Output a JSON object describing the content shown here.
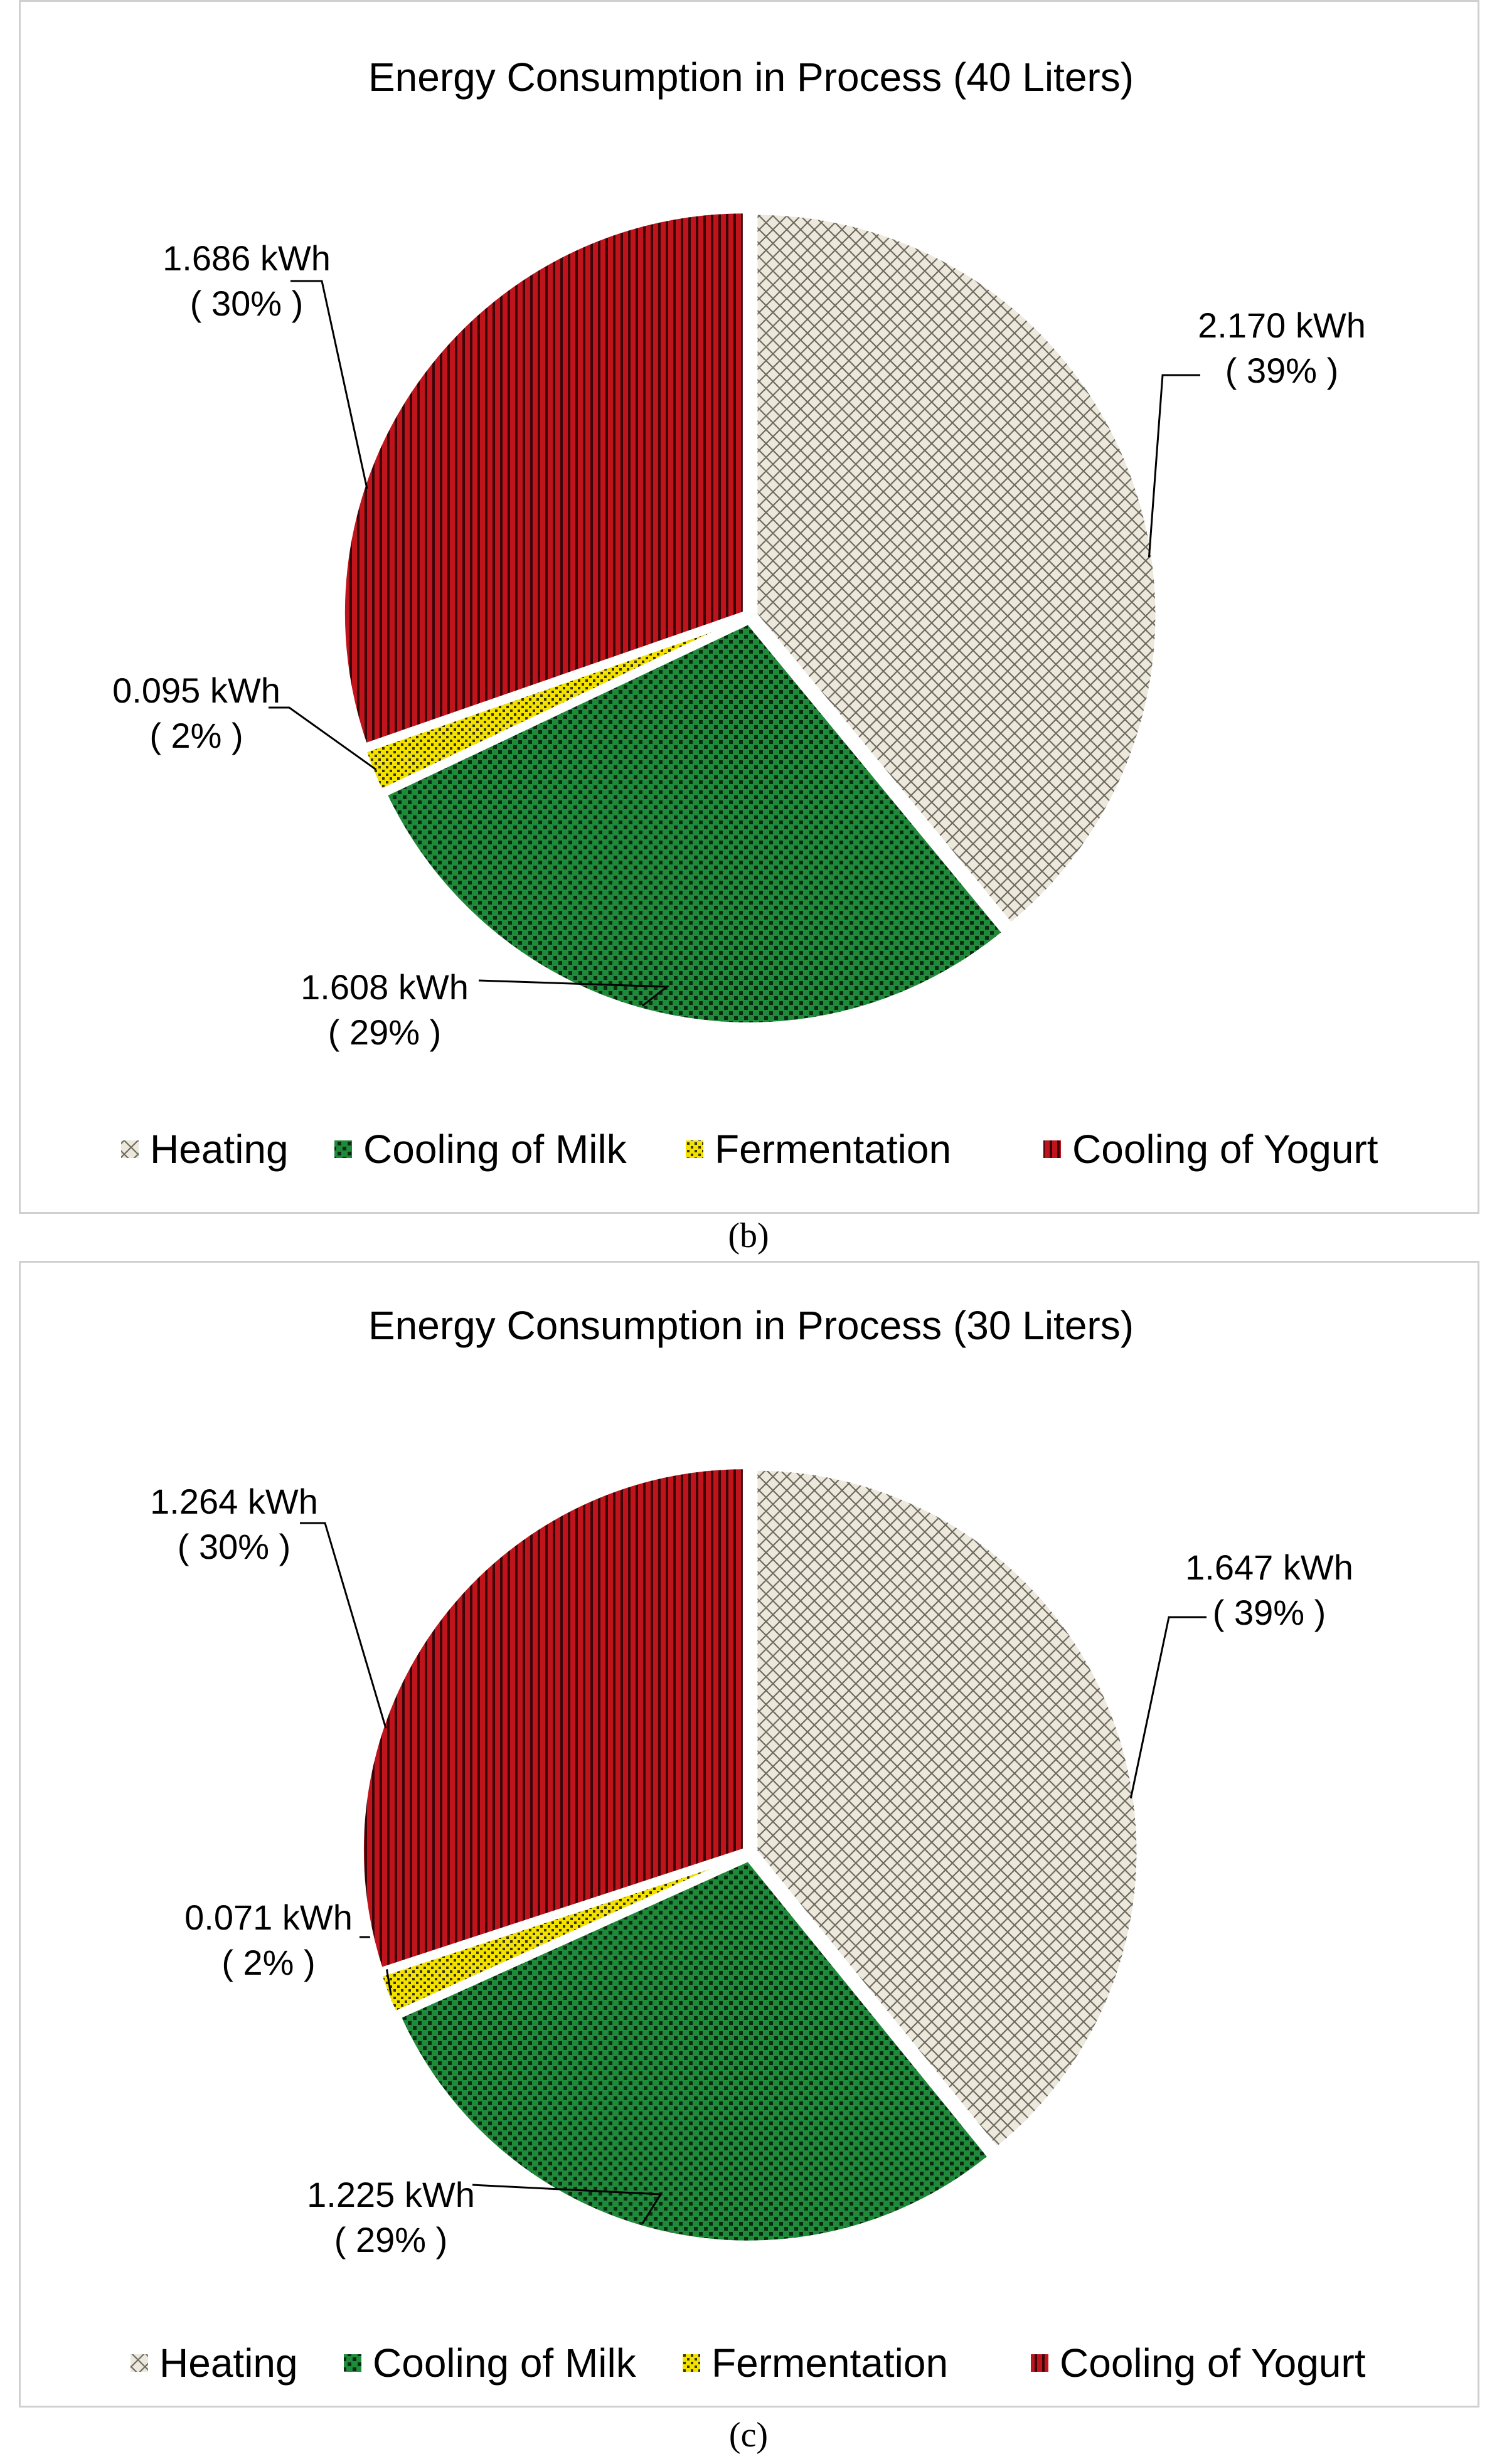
{
  "chart_data": [
    {
      "type": "pie",
      "title": "Energy Consumption in Process (40 Liters)",
      "caption": "(b)",
      "categories": [
        "Heating",
        "Cooling of Milk",
        "Fermentation",
        "Cooling of Yogurt"
      ],
      "values": [
        2.17,
        1.608,
        0.095,
        1.686
      ],
      "value_labels": [
        "2.170 kWh",
        "1.608 kWh",
        "0.095 kWh",
        "1.686 kWh"
      ],
      "percent_labels": [
        "( 39% )",
        "( 29% )",
        "( 2% )",
        "( 30% )"
      ],
      "unit": "kWh",
      "legend_position": "bottom"
    },
    {
      "type": "pie",
      "title": "Energy Consumption in Process (30 Liters)",
      "caption": "(c)",
      "categories": [
        "Heating",
        "Cooling of Milk",
        "Fermentation",
        "Cooling of Yogurt"
      ],
      "values": [
        1.647,
        1.225,
        0.071,
        1.264
      ],
      "value_labels": [
        "1.647 kWh",
        "1.225 kWh",
        "0.071 kWh",
        "1.264 kWh"
      ],
      "percent_labels": [
        "( 39% )",
        "( 29% )",
        "( 2% )",
        "( 30% )"
      ],
      "unit": "kWh",
      "legend_position": "bottom"
    }
  ],
  "series_colors": {
    "Heating": "#ece8dc",
    "Cooling of Milk": "#1e8a3a",
    "Fermentation": "#f3e200",
    "Cooling of Yogurt": "#c0141c"
  }
}
